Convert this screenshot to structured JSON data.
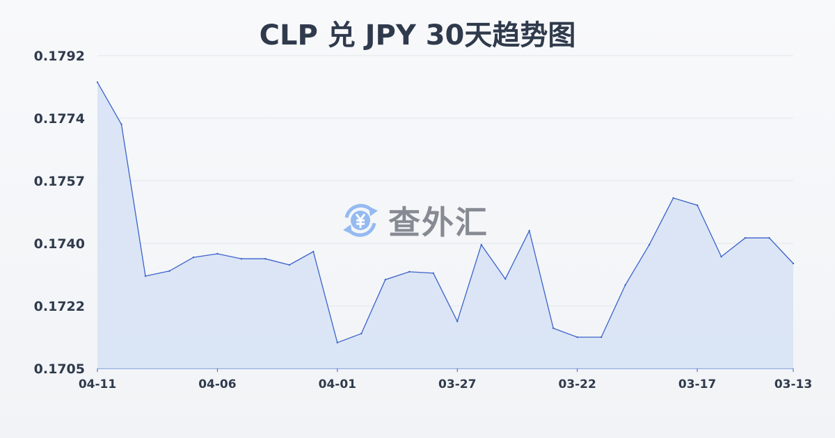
{
  "title": "CLP 兑 JPY 30天趋势图",
  "watermark": {
    "text": "查外汇",
    "icon": "yen-exchange-icon",
    "icon_color": "#8ab4f0"
  },
  "colors": {
    "line": "#3a62c9",
    "fill": "#d6e2f6",
    "grid": "#e2e5ea",
    "text": "#2f3a4c"
  },
  "chart_data": {
    "type": "area",
    "title": "CLP 兑 JPY 30天趋势图",
    "xlabel": "",
    "ylabel": "",
    "x": [
      "04-11",
      "04-10",
      "04-09",
      "04-08",
      "04-07",
      "04-06",
      "04-05",
      "04-04",
      "04-03",
      "04-02",
      "04-01",
      "03-31",
      "03-30",
      "03-29",
      "03-28",
      "03-27",
      "03-26",
      "03-25",
      "03-24",
      "03-23",
      "03-22",
      "03-21",
      "03-20",
      "03-19",
      "03-18",
      "03-17",
      "03-16",
      "03-15",
      "03-14",
      "03-13"
    ],
    "values": [
      0.17846,
      0.17729,
      0.17307,
      0.17321,
      0.17359,
      0.17369,
      0.17355,
      0.17355,
      0.17338,
      0.17375,
      0.17122,
      0.17147,
      0.17297,
      0.17319,
      0.17315,
      0.17181,
      0.17394,
      0.17299,
      0.17433,
      0.17162,
      0.17137,
      0.17137,
      0.17282,
      0.17394,
      0.17524,
      0.17504,
      0.17361,
      0.17413,
      0.17413,
      0.17342
    ],
    "x_tick_labels": [
      "04-11",
      "04-06",
      "04-01",
      "03-27",
      "03-22",
      "03-17",
      "03-13"
    ],
    "y_tick_labels": [
      "0.1705",
      "0.1722",
      "0.1740",
      "0.1757",
      "0.1774",
      "0.1792"
    ],
    "ylim": [
      0.1705,
      0.1792
    ],
    "grid": true,
    "legend": "none"
  }
}
